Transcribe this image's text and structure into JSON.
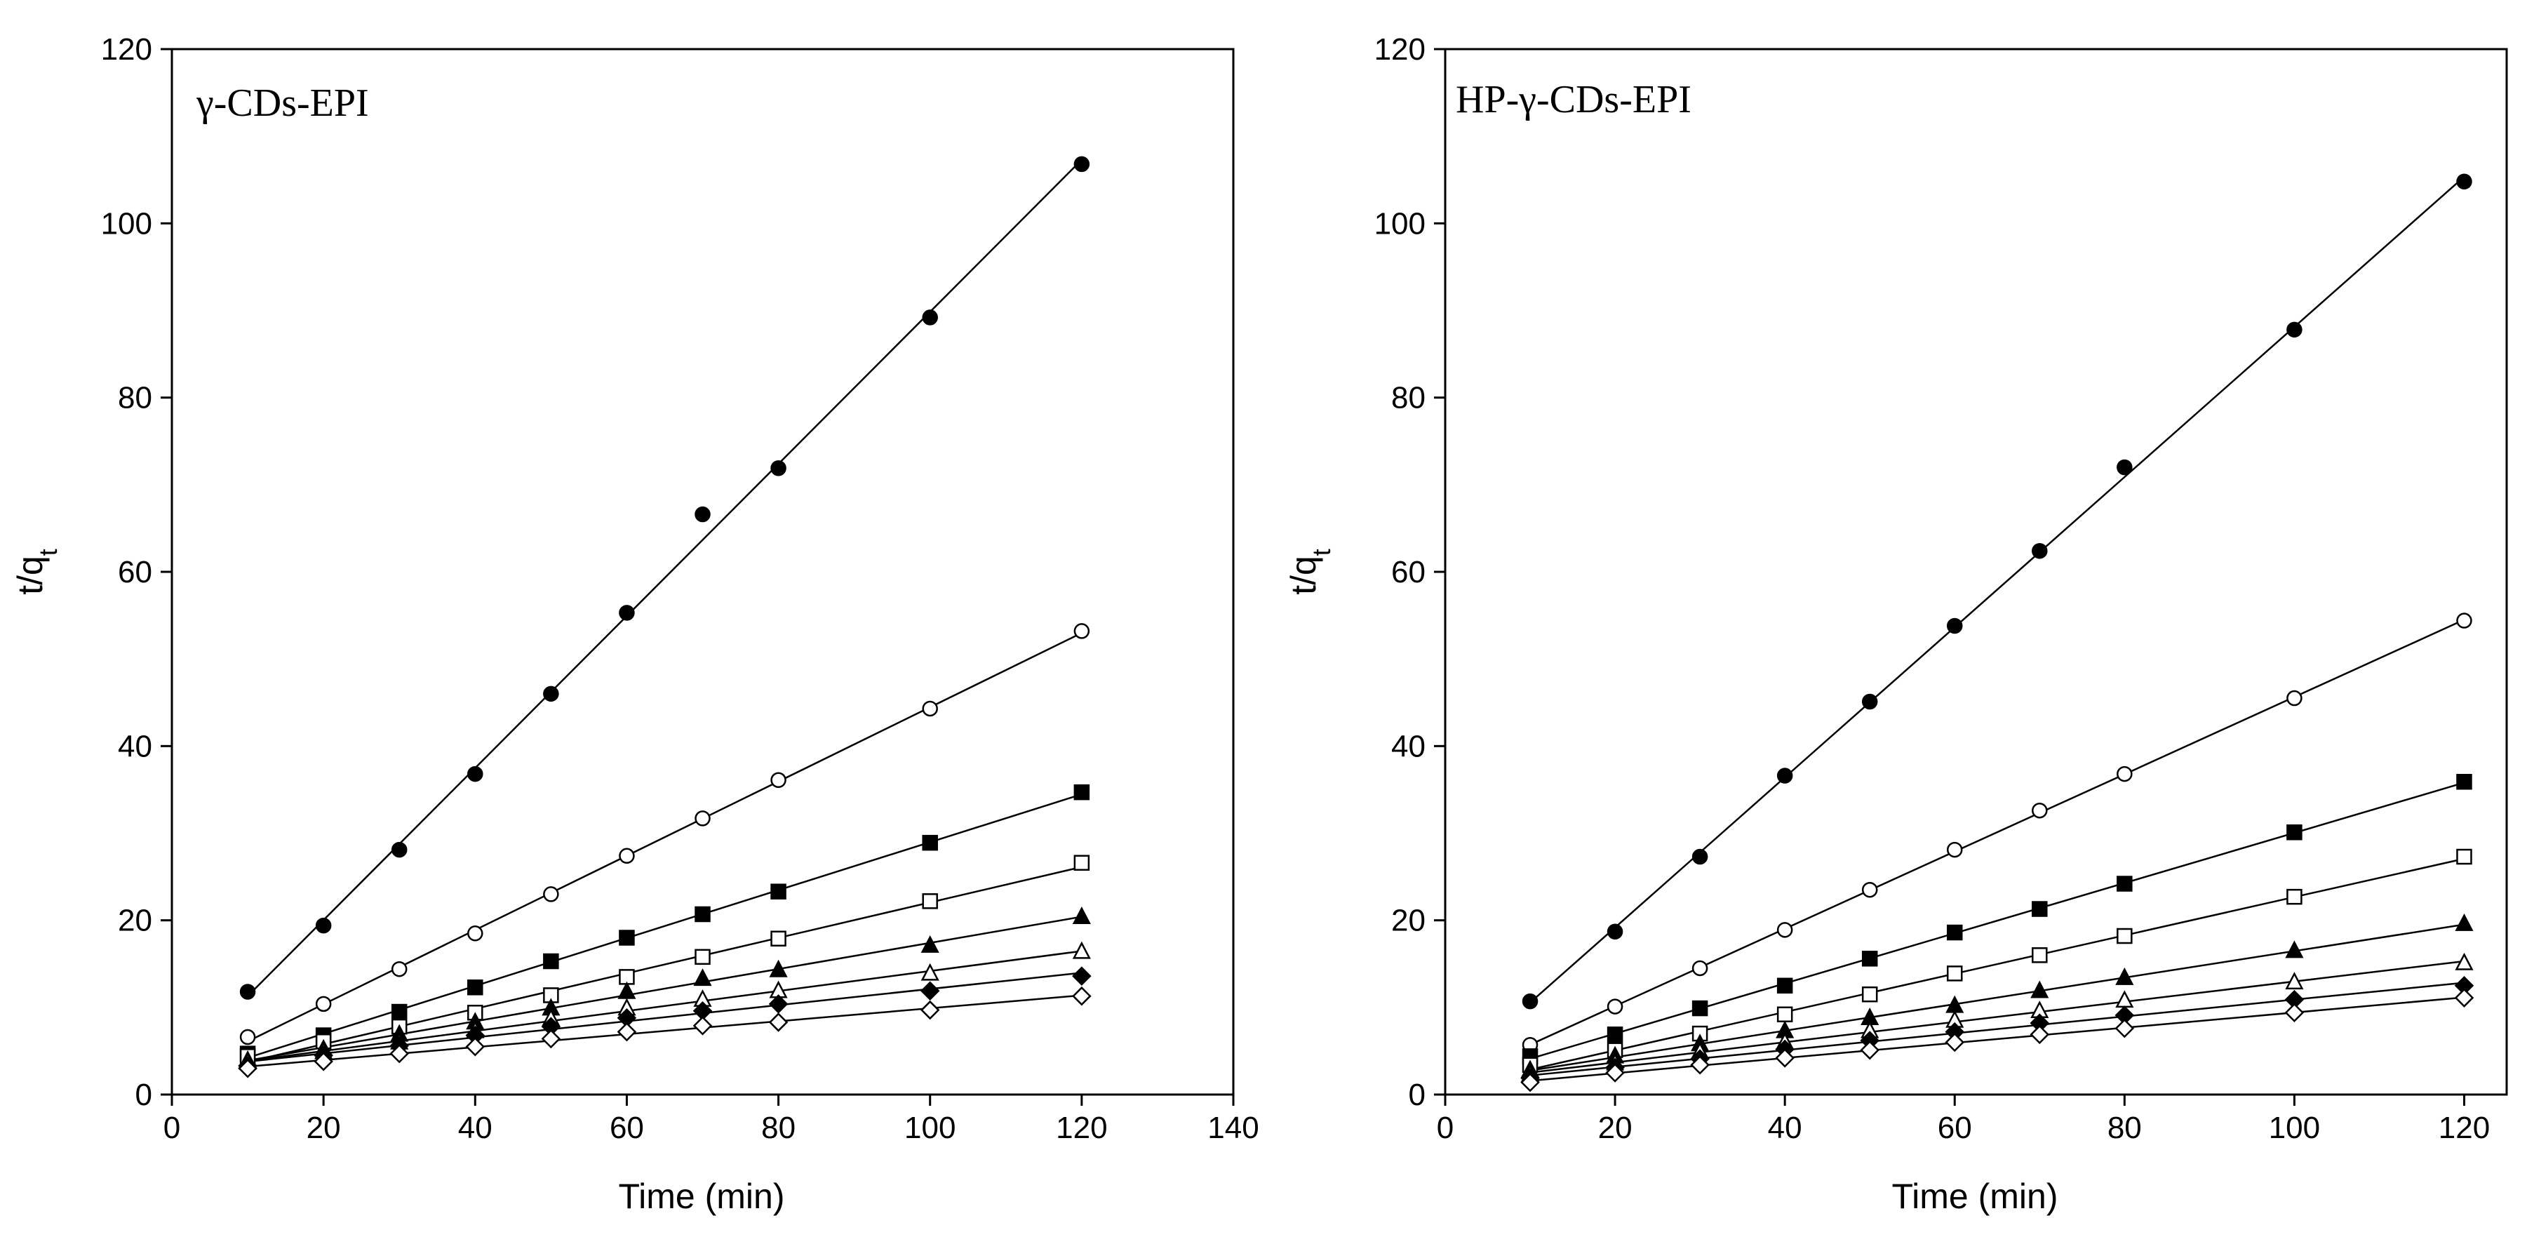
{
  "chart_data": [
    {
      "type": "scatter",
      "title": "γ-CDs-EPI",
      "xlabel": "Time (min)",
      "ylabel": "t/q",
      "ylabel_sub": "t",
      "xlim": [
        0,
        140
      ],
      "ylim": [
        0,
        120
      ],
      "xticks": [
        0,
        20,
        40,
        60,
        80,
        100,
        120,
        140
      ],
      "yticks": [
        0,
        20,
        40,
        60,
        80,
        100,
        120
      ],
      "grid": false,
      "fit_lines": true,
      "x": [
        10,
        20,
        30,
        40,
        50,
        60,
        70,
        80,
        100,
        120
      ],
      "series": [
        {
          "marker": "circle-filled",
          "values": [
            11.8,
            19.4,
            28.1,
            36.8,
            46.0,
            55.3,
            66.6,
            71.9,
            89.2,
            106.8
          ]
        },
        {
          "marker": "circle-open",
          "values": [
            6.6,
            10.4,
            14.4,
            18.5,
            23.0,
            27.4,
            31.7,
            36.1,
            44.3,
            53.2
          ]
        },
        {
          "marker": "square-filled",
          "values": [
            4.7,
            6.8,
            9.5,
            12.3,
            15.3,
            18.0,
            20.7,
            23.3,
            28.9,
            34.7
          ]
        },
        {
          "marker": "square-open",
          "values": [
            4.4,
            6.1,
            7.8,
            9.4,
            11.4,
            13.5,
            15.8,
            17.9,
            22.2,
            26.6
          ]
        },
        {
          "marker": "triangle-filled",
          "values": [
            3.9,
            5.2,
            6.9,
            8.3,
            9.9,
            11.8,
            13.3,
            14.3,
            17.1,
            20.4
          ]
        },
        {
          "marker": "triangle-open",
          "values": [
            3.7,
            4.9,
            6.0,
            7.3,
            8.7,
            9.9,
            10.9,
            11.9,
            13.9,
            16.4
          ]
        },
        {
          "marker": "diamond-filled",
          "values": [
            3.3,
            4.5,
            5.6,
            6.8,
            7.8,
            8.8,
            9.6,
            10.4,
            11.9,
            13.6
          ]
        },
        {
          "marker": "diamond-open",
          "values": [
            3.0,
            3.8,
            4.7,
            5.5,
            6.4,
            7.2,
            7.9,
            8.3,
            9.7,
            11.3
          ]
        }
      ]
    },
    {
      "type": "scatter",
      "title": "HP-γ-CDs-EPI",
      "xlabel": "Time (min)",
      "ylabel": "t/q",
      "ylabel_sub": "t",
      "xlim": [
        0,
        125
      ],
      "ylim": [
        0,
        120
      ],
      "xticks": [
        0,
        20,
        40,
        60,
        80,
        100,
        120
      ],
      "yticks": [
        0,
        20,
        40,
        60,
        80,
        100,
        120
      ],
      "grid": false,
      "fit_lines": true,
      "x": [
        10,
        20,
        30,
        40,
        50,
        60,
        70,
        80,
        100,
        120
      ],
      "series": [
        {
          "marker": "circle-filled",
          "values": [
            10.7,
            18.7,
            27.3,
            36.6,
            45.1,
            53.8,
            62.4,
            72.0,
            87.8,
            104.8
          ]
        },
        {
          "marker": "circle-open",
          "values": [
            5.7,
            10.1,
            14.5,
            18.9,
            23.5,
            28.1,
            32.6,
            36.8,
            45.5,
            54.4
          ]
        },
        {
          "marker": "square-filled",
          "values": [
            4.4,
            6.9,
            9.9,
            12.5,
            15.6,
            18.6,
            21.3,
            24.2,
            30.1,
            35.9
          ]
        },
        {
          "marker": "square-open",
          "values": [
            3.4,
            5.1,
            7.0,
            9.2,
            11.5,
            13.9,
            16.0,
            18.2,
            22.7,
            27.3
          ]
        },
        {
          "marker": "triangle-filled",
          "values": [
            2.8,
            4.4,
            5.8,
            7.3,
            8.8,
            10.2,
            11.9,
            13.4,
            16.5,
            19.6
          ]
        },
        {
          "marker": "triangle-open",
          "values": [
            2.3,
            3.6,
            4.9,
            6.0,
            7.3,
            8.5,
            9.6,
            10.8,
            12.9,
            15.1
          ]
        },
        {
          "marker": "diamond-filled",
          "values": [
            1.9,
            3.1,
            4.1,
            5.2,
            6.2,
            7.2,
            8.2,
            9.1,
            10.9,
            12.5
          ]
        },
        {
          "marker": "diamond-open",
          "values": [
            1.4,
            2.5,
            3.4,
            4.2,
            5.1,
            6.0,
            6.9,
            7.6,
            9.4,
            11.1
          ]
        }
      ]
    }
  ]
}
